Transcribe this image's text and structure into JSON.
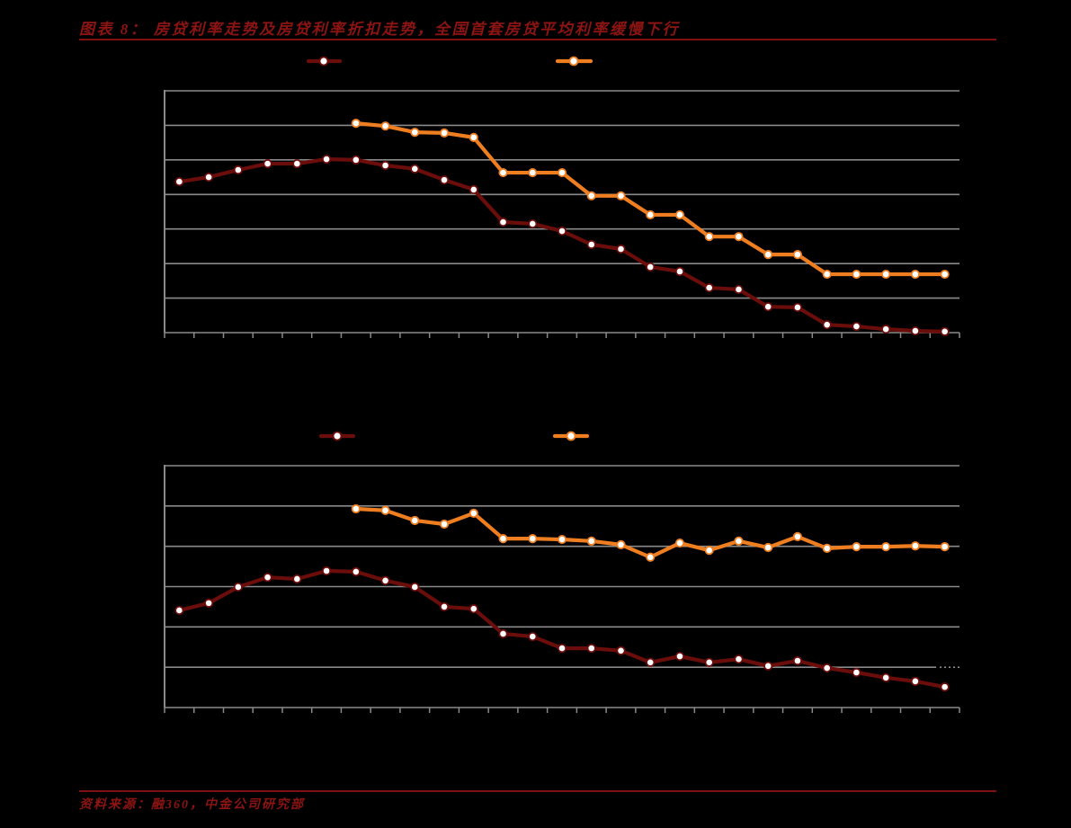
{
  "page": {
    "background": "#000000"
  },
  "header": {
    "title": "图表 8：  房贷利率走势及房贷利率折扣走势，全国首套房贷平均利率缓慢下行"
  },
  "footer": {
    "source": "资料来源：融360，中金公司研究部"
  },
  "colors": {
    "title_red": "#8C1412",
    "rule_red": "#7E100F",
    "series_dark_red": "#6B0D0B",
    "series_orange": "#EE7E20",
    "marker_fill": "#FFFFFF",
    "gridline_gray": "#8A8A8A",
    "background": "#000000"
  },
  "chart_data": [
    {
      "type": "line",
      "title": "",
      "axis_labels_visible": false,
      "legend_labels_visible": false,
      "legend_position": "top",
      "grid": "horizontal gridlines on, 8 lines incl. top border and x-axis",
      "x_count": 27,
      "x_tick_marks": 28,
      "ylim": [
        0,
        7
      ],
      "y_units": "gridline intervals above x-axis (numeric axis labels not rendered in source image)",
      "series": [
        {
          "name": "dark-red-series",
          "marker": "white-filled circle",
          "color": "#6B0D0B",
          "start_index": 0,
          "values": [
            4.37,
            4.5,
            4.71,
            4.89,
            4.89,
            5.02,
            5.0,
            4.84,
            4.74,
            4.42,
            4.14,
            3.2,
            3.15,
            2.94,
            2.55,
            2.42,
            1.9,
            1.77,
            1.3,
            1.25,
            0.75,
            0.73,
            0.23,
            0.18,
            0.1,
            0.05,
            0.03
          ]
        },
        {
          "name": "orange-series",
          "marker": "white-filled circle",
          "color": "#EE7E20",
          "start_index": 6,
          "values": [
            6.06,
            5.98,
            5.8,
            5.78,
            5.65,
            4.63,
            4.63,
            4.63,
            3.96,
            3.96,
            3.41,
            3.41,
            2.78,
            2.78,
            2.26,
            2.26,
            1.69,
            1.69,
            1.69,
            1.69,
            1.69
          ]
        }
      ]
    },
    {
      "type": "line",
      "title": "",
      "axis_labels_visible": false,
      "legend_labels_visible": false,
      "legend_position": "top",
      "grid": "horizontal gridlines on, 7 lines incl. top border and x-axis",
      "x_count": 27,
      "x_tick_marks": 28,
      "ylim": [
        0,
        6
      ],
      "y_units": "gridline intervals above x-axis (numeric axis labels not rendered in source image)",
      "series": [
        {
          "name": "dark-red-series",
          "marker": "white-filled circle",
          "color": "#6B0D0B",
          "start_index": 0,
          "values": [
            2.41,
            2.59,
            2.99,
            3.23,
            3.19,
            3.39,
            3.37,
            3.15,
            2.99,
            2.5,
            2.45,
            1.83,
            1.76,
            1.47,
            1.47,
            1.41,
            1.12,
            1.27,
            1.12,
            1.2,
            1.03,
            1.16,
            0.98,
            0.87,
            0.74,
            0.65,
            0.51
          ]
        },
        {
          "name": "orange-series",
          "marker": "white-filled circle",
          "color": "#EE7E20",
          "start_index": 6,
          "values": [
            4.93,
            4.89,
            4.64,
            4.55,
            4.82,
            4.19,
            4.19,
            4.17,
            4.13,
            4.04,
            3.73,
            4.08,
            3.9,
            4.13,
            3.97,
            4.24,
            3.95,
            3.99,
            3.99,
            4.01,
            3.99
          ]
        }
      ]
    }
  ]
}
